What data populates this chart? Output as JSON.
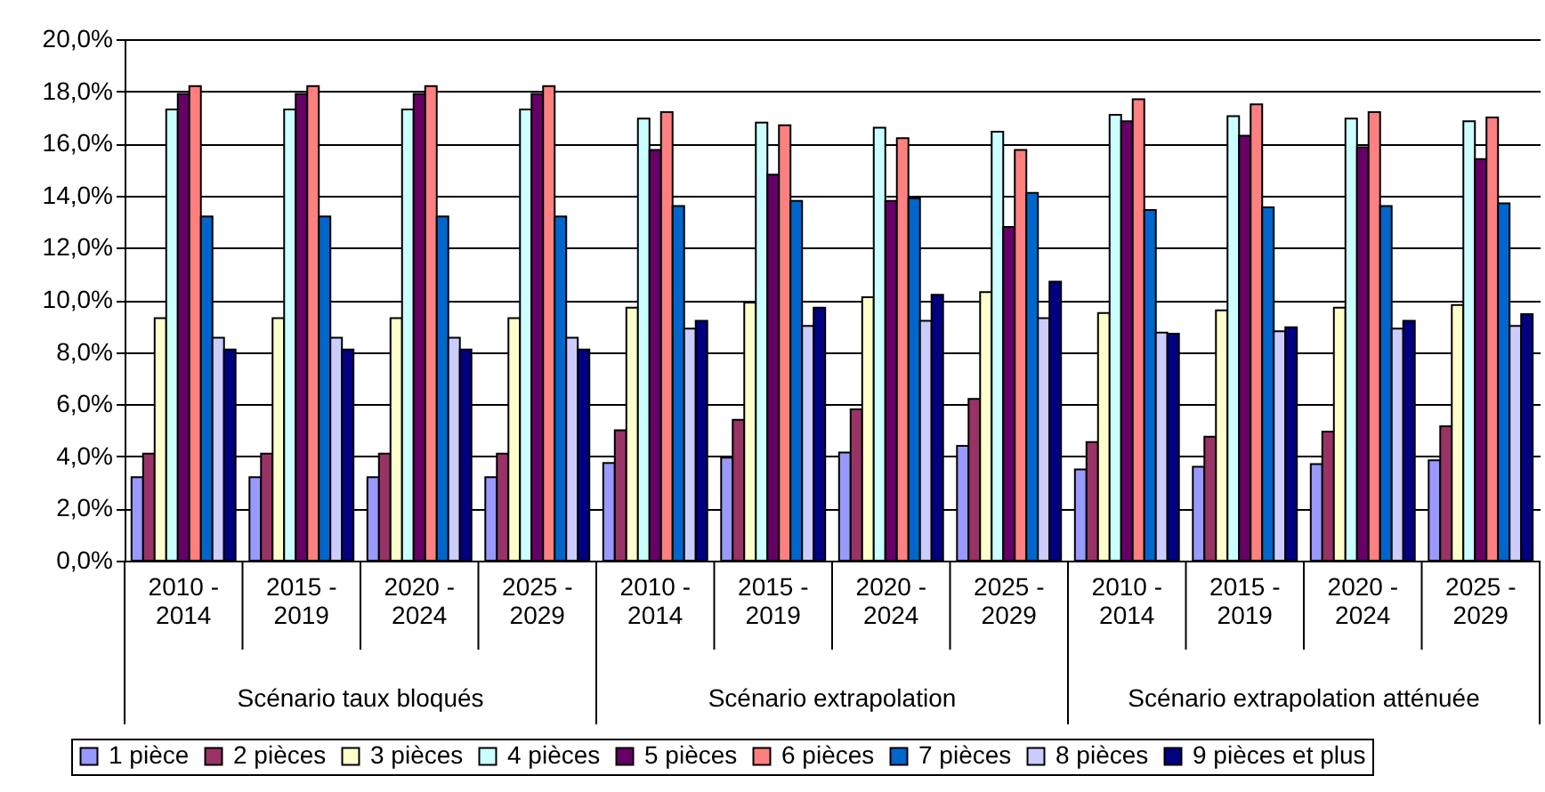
{
  "chart_data": {
    "type": "bar",
    "categories": [
      "2010 - 2014",
      "2015 - 2019",
      "2020 - 2024",
      "2025 - 2029",
      "2010 - 2014",
      "2015 - 2019",
      "2020 - 2024",
      "2025 - 2029",
      "2010 - 2014",
      "2015 - 2019",
      "2020 - 2024",
      "2025 - 2029"
    ],
    "annotations": [
      "Scénario taux bloqués",
      "Scénario extrapolation",
      "Scénario extrapolation atténuée"
    ],
    "series": [
      {
        "name": "1 pièce",
        "color": "#9999ff",
        "values": [
          3.2,
          3.2,
          3.2,
          3.2,
          3.75,
          3.95,
          4.15,
          4.4,
          3.5,
          3.6,
          3.7,
          3.85
        ]
      },
      {
        "name": "2 pièces",
        "color": "#993366",
        "values": [
          4.1,
          4.1,
          4.1,
          4.1,
          5.0,
          5.4,
          5.8,
          6.2,
          4.55,
          4.75,
          4.95,
          5.15
        ]
      },
      {
        "name": "3 pièces",
        "color": "#ffffcc",
        "values": [
          9.3,
          9.3,
          9.3,
          9.3,
          9.7,
          9.9,
          10.1,
          10.3,
          9.5,
          9.6,
          9.7,
          9.8
        ]
      },
      {
        "name": "4 pièces",
        "color": "#ccffff",
        "values": [
          17.3,
          17.3,
          17.3,
          17.3,
          16.95,
          16.8,
          16.6,
          16.45,
          17.1,
          17.05,
          16.95,
          16.85
        ]
      },
      {
        "name": "5 pièces",
        "color": "#660066",
        "values": [
          17.9,
          17.9,
          17.9,
          17.9,
          15.75,
          14.8,
          13.8,
          12.8,
          16.85,
          16.3,
          15.85,
          15.4
        ]
      },
      {
        "name": "6 pièces",
        "color": "#ff8080",
        "values": [
          18.2,
          18.2,
          18.2,
          18.2,
          17.2,
          16.7,
          16.2,
          15.75,
          17.7,
          17.5,
          17.2,
          17.0
        ]
      },
      {
        "name": "7 pièces",
        "color": "#0066cc",
        "values": [
          13.2,
          13.2,
          13.2,
          13.2,
          13.6,
          13.8,
          13.9,
          14.1,
          13.45,
          13.55,
          13.6,
          13.7
        ]
      },
      {
        "name": "8 pièces",
        "color": "#ccccff",
        "values": [
          8.55,
          8.55,
          8.55,
          8.55,
          8.9,
          9.0,
          9.2,
          9.3,
          8.75,
          8.8,
          8.9,
          9.0
        ]
      },
      {
        "name": "9 pièces et plus",
        "color": "#000080",
        "values": [
          8.1,
          8.1,
          8.1,
          8.1,
          9.2,
          9.7,
          10.2,
          10.7,
          8.7,
          8.95,
          9.2,
          9.45
        ]
      }
    ],
    "ylim": [
      0,
      20
    ],
    "yticks": [
      {
        "value": 0,
        "label": "0,0%"
      },
      {
        "value": 2,
        "label": "2,0%"
      },
      {
        "value": 4,
        "label": "4,0%"
      },
      {
        "value": 6,
        "label": "6,0%"
      },
      {
        "value": 8,
        "label": "8,0%"
      },
      {
        "value": 10,
        "label": "10,0%"
      },
      {
        "value": 12,
        "label": "12,0%"
      },
      {
        "value": 14,
        "label": "14,0%"
      },
      {
        "value": 16,
        "label": "16,0%"
      },
      {
        "value": 18,
        "label": "18,0%"
      },
      {
        "value": 20,
        "label": "20,0%"
      }
    ],
    "grid": "y",
    "legend": "bottom"
  }
}
